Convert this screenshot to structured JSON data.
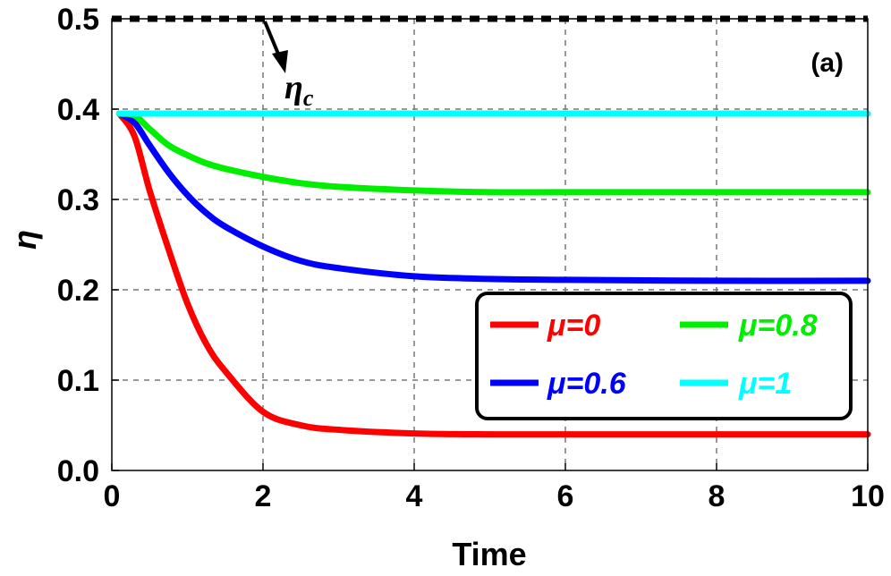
{
  "chart_data": {
    "type": "line",
    "title": "",
    "panel_label": "(a)",
    "xlabel": "Time",
    "ylabel": "η",
    "xlim": [
      0,
      10
    ],
    "ylim": [
      0,
      0.5
    ],
    "x_ticks": [
      0,
      2,
      4,
      6,
      8,
      10
    ],
    "y_ticks": [
      0.0,
      0.1,
      0.2,
      0.3,
      0.4,
      0.5
    ],
    "x_tick_labels": [
      "0",
      "2",
      "4",
      "6",
      "8",
      "10"
    ],
    "y_tick_labels": [
      "0.0",
      "0.1",
      "0.2",
      "0.3",
      "0.4",
      "0.5"
    ],
    "grid": true,
    "legend_position": "bottom-right",
    "x": [
      0.1,
      0.3,
      0.5,
      0.75,
      1.0,
      1.25,
      1.5,
      2.0,
      2.5,
      3.0,
      4.0,
      5.0,
      6.0,
      8.0,
      10.0
    ],
    "series": [
      {
        "name": "μ=0",
        "color": "#ff0000",
        "values": [
          0.395,
          0.37,
          0.31,
          0.245,
          0.185,
          0.14,
          0.11,
          0.065,
          0.05,
          0.045,
          0.041,
          0.04,
          0.04,
          0.04,
          0.04
        ]
      },
      {
        "name": "μ=0.6",
        "color": "#0000ff",
        "values": [
          0.395,
          0.385,
          0.36,
          0.33,
          0.305,
          0.285,
          0.27,
          0.248,
          0.232,
          0.224,
          0.215,
          0.212,
          0.211,
          0.21,
          0.21
        ]
      },
      {
        "name": "μ=0.8",
        "color": "#00ee00",
        "values": [
          0.395,
          0.393,
          0.378,
          0.36,
          0.349,
          0.34,
          0.334,
          0.325,
          0.318,
          0.314,
          0.31,
          0.308,
          0.308,
          0.308,
          0.308
        ]
      },
      {
        "name": "μ=1",
        "color": "#00ffff",
        "values": [
          0.395,
          0.395,
          0.395,
          0.395,
          0.395,
          0.395,
          0.395,
          0.395,
          0.395,
          0.395,
          0.395,
          0.395,
          0.395,
          0.395,
          0.395
        ]
      }
    ],
    "reference_line": {
      "y": 0.5,
      "color": "#000000",
      "style": "dashed"
    },
    "annotations": [
      {
        "text": "η",
        "subscript": "c",
        "arrow_to": [
          2.0,
          0.5
        ]
      }
    ]
  }
}
